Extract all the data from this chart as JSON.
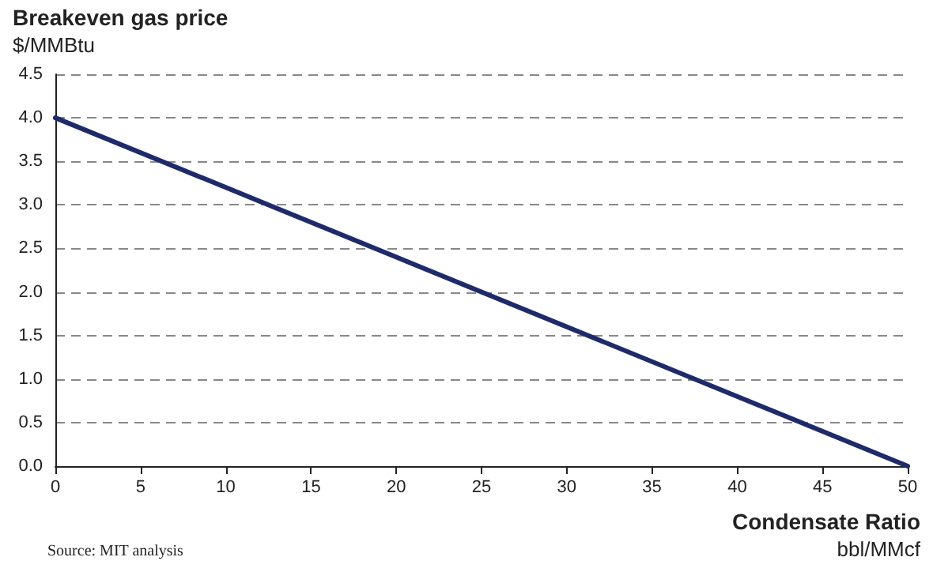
{
  "chart_data": {
    "type": "line",
    "title": "Breakeven gas price",
    "ylabel": "$/MMBtu",
    "xlabel": "Condensate Ratio\nbbl/MMcf",
    "annotations": [
      "Source: MIT analysis"
    ],
    "x": [
      0,
      50
    ],
    "series": [
      {
        "color": "#1f2a6b",
        "values": [
          4.0,
          0.0
        ]
      }
    ],
    "xlim": [
      0,
      50
    ],
    "xticks": [
      0,
      5,
      10,
      15,
      20,
      25,
      30,
      35,
      40,
      45,
      50
    ],
    "ylim": [
      0,
      4.5
    ],
    "yticks": [
      {
        "value": 0,
        "label": "0.0"
      },
      {
        "value": 0.5,
        "label": "0.5"
      },
      {
        "value": 1,
        "label": "1.0"
      },
      {
        "value": 1.5,
        "label": "1.5"
      },
      {
        "value": 2,
        "label": "2.0"
      },
      {
        "value": 2.5,
        "label": "2.5"
      },
      {
        "value": 3,
        "label": "3.0"
      },
      {
        "value": 3.5,
        "label": "3.5"
      },
      {
        "value": 4,
        "label": "4.0"
      },
      {
        "value": 4.5,
        "label": "4.5"
      }
    ],
    "grid": "y",
    "marker": "none",
    "line_style": "solid"
  }
}
